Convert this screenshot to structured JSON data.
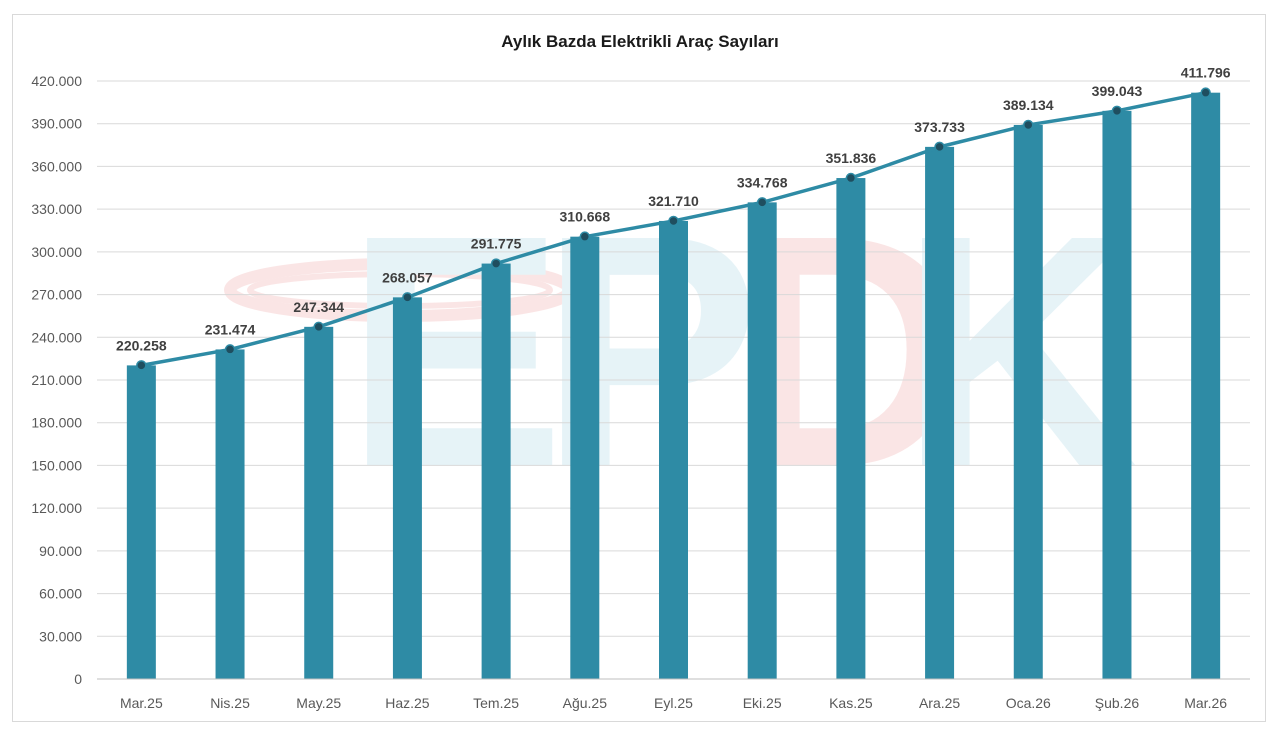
{
  "chart_data": {
    "type": "bar",
    "title": "Aylık Bazda Elektrikli Araç Sayıları",
    "categories": [
      "Mar.25",
      "Nis.25",
      "May.25",
      "Haz.25",
      "Tem.25",
      "Ağu.25",
      "Eyl.25",
      "Eki.25",
      "Kas.25",
      "Ara.25",
      "Oca.26",
      "Şub.26",
      "Mar.26"
    ],
    "values": [
      220258,
      231474,
      247344,
      268057,
      291775,
      310668,
      321710,
      334768,
      351836,
      373733,
      389134,
      399043,
      411796
    ],
    "data_labels": [
      "220.258",
      "231.474",
      "247.344",
      "268.057",
      "291.775",
      "310.668",
      "321.710",
      "334.768",
      "351.836",
      "373.733",
      "389.134",
      "399.043",
      "411.796"
    ],
    "overlay": "line connecting bar tops with point markers",
    "ylim": [
      0,
      420000
    ],
    "y_ticks": [
      "0",
      "30.000",
      "60.000",
      "90.000",
      "120.000",
      "150.000",
      "180.000",
      "210.000",
      "240.000",
      "270.000",
      "300.000",
      "330.000",
      "360.000",
      "390.000",
      "420.000"
    ],
    "y_tick_values": [
      0,
      30000,
      60000,
      90000,
      120000,
      150000,
      180000,
      210000,
      240000,
      270000,
      300000,
      330000,
      360000,
      390000,
      420000
    ],
    "grid": true,
    "legend": "none",
    "xlabel": "",
    "ylabel": "",
    "colors": {
      "bar": "#2e8ba5",
      "line": "#2e8ba5",
      "marker": "#1f4e5f",
      "grid": "#d9d9d9"
    },
    "watermark": "EPDK"
  }
}
